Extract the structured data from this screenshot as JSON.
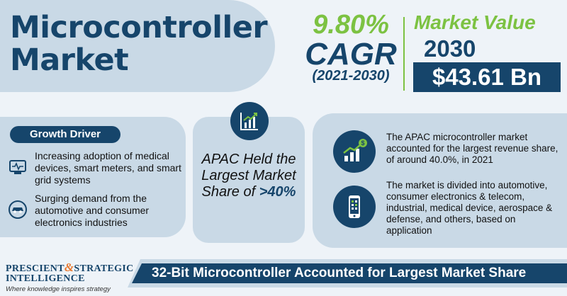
{
  "title": {
    "line1": "Microcontroller",
    "line2": "Market"
  },
  "cagr": {
    "percent": "9.80%",
    "label": "CAGR",
    "years": "(2021-2030)"
  },
  "market_value": {
    "title": "Market Value",
    "year": "2030",
    "amount": "$43.61 Bn"
  },
  "growth_driver": {
    "heading": "Growth Driver",
    "items": [
      {
        "icon": "medical-device-icon",
        "text": "Increasing adoption of medical devices, smart meters, and smart grid systems"
      },
      {
        "icon": "car-icon",
        "text": "Surging demand from the automotive and consumer electronics industries"
      }
    ]
  },
  "apac": {
    "text": "APAC Held the Largest Market Share of",
    "value": ">40%"
  },
  "right_items": [
    {
      "icon": "revenue-chart-icon",
      "text": "The APAC microcontroller market accounted for the largest revenue share, of around 40.0%, in 2021"
    },
    {
      "icon": "smartphone-icon",
      "text": "The market is divided into automotive, consumer electronics & telecom, industrial, medical device, aerospace & defense, and others, based on application"
    }
  ],
  "logo": {
    "word1": "PRESCIENT",
    "amp": "&",
    "word2": "STRATEGIC",
    "line2": "INTELLIGENCE",
    "tagline": "Where knowledge inspires strategy"
  },
  "banner": "32-Bit Microcontroller Accounted for Largest Market Share",
  "colors": {
    "navy": "#16456b",
    "green": "#7cc242",
    "panel": "#c9d9e6",
    "background": "#eef3f8",
    "orange": "#e8772e"
  }
}
